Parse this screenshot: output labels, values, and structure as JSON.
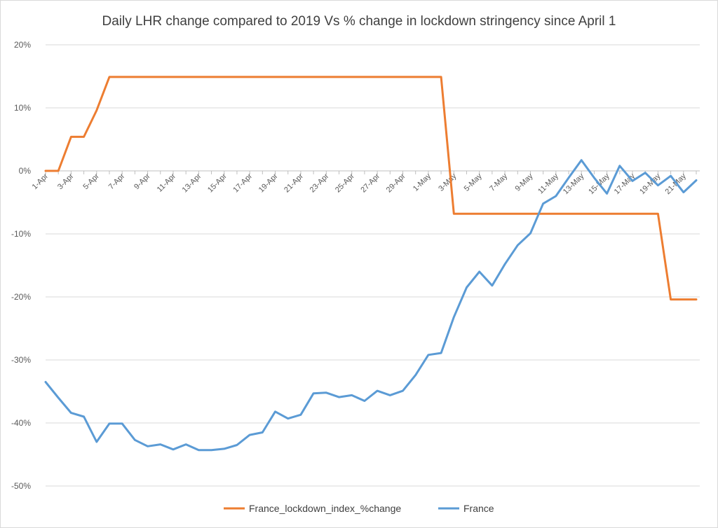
{
  "chart_data": {
    "type": "line",
    "title": "Daily LHR change compared to 2019 Vs % change in lockdown stringency since April 1",
    "xlabel": "",
    "ylabel": "",
    "ylim": [
      -50,
      20
    ],
    "ytick_labels": [
      "20%",
      "10%",
      "0%",
      "-10%",
      "-20%",
      "-30%",
      "-40%",
      "-50%"
    ],
    "ytick_values": [
      20,
      10,
      0,
      -10,
      -20,
      -30,
      -40,
      -50
    ],
    "categories": [
      "1-Apr",
      "2-Apr",
      "3-Apr",
      "4-Apr",
      "5-Apr",
      "6-Apr",
      "7-Apr",
      "8-Apr",
      "9-Apr",
      "10-Apr",
      "11-Apr",
      "12-Apr",
      "13-Apr",
      "14-Apr",
      "15-Apr",
      "16-Apr",
      "17-Apr",
      "18-Apr",
      "19-Apr",
      "20-Apr",
      "21-Apr",
      "22-Apr",
      "23-Apr",
      "24-Apr",
      "25-Apr",
      "26-Apr",
      "27-Apr",
      "28-Apr",
      "29-Apr",
      "30-Apr",
      "1-May",
      "2-May",
      "3-May",
      "4-May",
      "5-May",
      "6-May",
      "7-May",
      "8-May",
      "9-May",
      "10-May",
      "11-May",
      "12-May",
      "13-May",
      "14-May",
      "15-May",
      "16-May",
      "17-May",
      "18-May",
      "19-May",
      "20-May",
      "21-May",
      "22-May"
    ],
    "xtick_labels": [
      "1-Apr",
      "3-Apr",
      "5-Apr",
      "7-Apr",
      "9-Apr",
      "11-Apr",
      "13-Apr",
      "15-Apr",
      "17-Apr",
      "19-Apr",
      "21-Apr",
      "23-Apr",
      "25-Apr",
      "27-Apr",
      "29-Apr",
      "1-May",
      "3-May",
      "5-May",
      "7-May",
      "9-May",
      "11-May",
      "13-May",
      "15-May",
      "17-May",
      "19-May",
      "21-May"
    ],
    "grid": true,
    "legend_position": "bottom",
    "series": [
      {
        "name": "France_lockdown_index_%change",
        "color": "#ed7d31",
        "values": [
          0,
          0,
          5.4,
          5.4,
          9.6,
          14.9,
          14.9,
          14.9,
          14.9,
          14.9,
          14.9,
          14.9,
          14.9,
          14.9,
          14.9,
          14.9,
          14.9,
          14.9,
          14.9,
          14.9,
          14.9,
          14.9,
          14.9,
          14.9,
          14.9,
          14.9,
          14.9,
          14.9,
          14.9,
          14.9,
          14.9,
          14.9,
          -6.8,
          -6.8,
          -6.8,
          -6.8,
          -6.8,
          -6.8,
          -6.8,
          -6.8,
          -6.8,
          -6.8,
          -6.8,
          -6.8,
          -6.8,
          -6.8,
          -6.8,
          -6.8,
          -6.8,
          -20.4,
          -20.4,
          -20.4
        ]
      },
      {
        "name": "France",
        "color": "#5b9bd5",
        "values": [
          -33.5,
          -36.0,
          -38.4,
          -39.0,
          -43.0,
          -40.1,
          -40.1,
          -42.7,
          -43.7,
          -43.4,
          -44.2,
          -43.4,
          -44.3,
          -44.3,
          -44.1,
          -43.5,
          -41.9,
          -41.5,
          -38.2,
          -39.3,
          -38.7,
          -35.3,
          -35.2,
          -35.9,
          -35.6,
          -36.5,
          -34.9,
          -35.6,
          -34.9,
          -32.4,
          -29.2,
          -28.9,
          -23.2,
          -18.5,
          -16.0,
          -18.2,
          -14.8,
          -11.8,
          -9.9,
          -5.2,
          -4.0,
          -1.1,
          1.7,
          -1.1,
          -3.6,
          0.8,
          -1.6,
          -0.3,
          -2.3,
          -0.8,
          -3.4,
          -1.5
        ]
      }
    ]
  }
}
